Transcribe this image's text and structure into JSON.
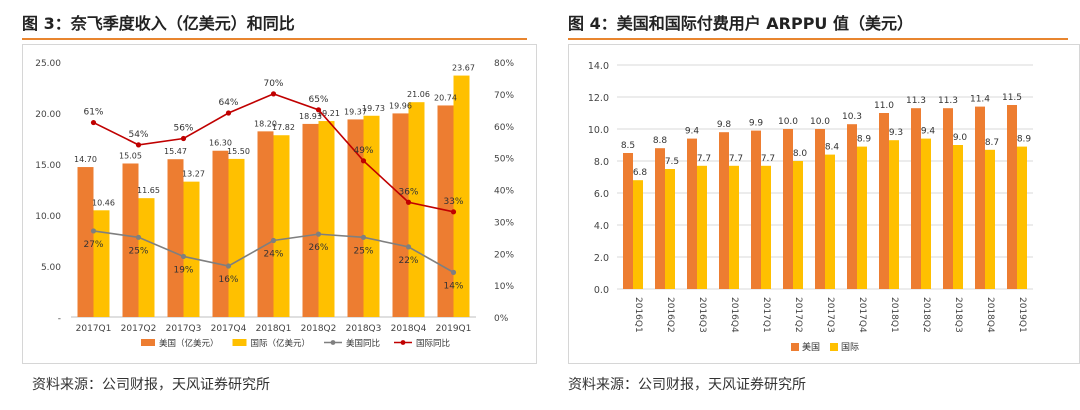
{
  "left_panel": {
    "title": "图 3：奈飞季度收入（亿美元）和同比",
    "source": "资料来源：公司财报，天风证券研究所"
  },
  "right_panel": {
    "title": "图 4：美国和国际付费用户 ARPPU 值（美元）",
    "source": "资料来源：公司财报，天风证券研究所"
  },
  "colors": {
    "us": "#ed7d31",
    "intl": "#ffc000",
    "us_yoy": "#7f7f7f",
    "intl_yoy": "#c00000",
    "accent": "#e8852f"
  },
  "chart_data": [
    {
      "type": "bar",
      "title": "奈飞季度收入（亿美元）和同比",
      "categories": [
        "2017Q1",
        "2017Q2",
        "2017Q3",
        "2017Q4",
        "2018Q1",
        "2018Q2",
        "2018Q3",
        "2018Q4",
        "2019Q1"
      ],
      "series": [
        {
          "name": "美国（亿美元）",
          "values": [
            14.7,
            15.05,
            15.47,
            16.3,
            18.2,
            18.93,
            19.37,
            19.96,
            20.74
          ]
        },
        {
          "name": "国际（亿美元）",
          "values": [
            10.46,
            11.65,
            13.27,
            15.5,
            17.82,
            19.21,
            19.73,
            21.06,
            23.67
          ]
        }
      ],
      "value_labels": {
        "us": [
          "14.70",
          "15.05",
          "15.47",
          "16.30",
          "18.20",
          "18.93",
          "19.37",
          "19.96",
          "20.74"
        ],
        "intl": [
          "10.46",
          "11.65",
          "13.27",
          "15.50",
          "17.82",
          "19.21",
          "19.73",
          "21.06",
          "23.67"
        ]
      },
      "line_series": [
        {
          "name": "美国同比",
          "values": [
            27,
            25,
            19,
            16,
            24,
            26,
            25,
            22,
            14
          ],
          "labels": [
            "27%",
            "25%",
            "19%",
            "16%",
            "24%",
            "26%",
            "25%",
            "22%",
            "14%"
          ]
        },
        {
          "name": "国际同比",
          "values": [
            61,
            54,
            56,
            64,
            70,
            65,
            49,
            36,
            33
          ],
          "labels": [
            "61%",
            "54%",
            "56%",
            "64%",
            "70%",
            "65%",
            "49%",
            "36%",
            "33%"
          ]
        }
      ],
      "ylim": [
        0,
        25
      ],
      "y2lim": [
        0,
        80
      ],
      "y_ticks": [
        "-",
        "5.00",
        "10.00",
        "15.00",
        "20.00",
        "25.00"
      ],
      "y2_ticks": [
        "0%",
        "10%",
        "20%",
        "30%",
        "40%",
        "50%",
        "60%",
        "70%",
        "80%"
      ],
      "legend": [
        "美国（亿美元）",
        "国际（亿美元）",
        "美国同比",
        "国际同比"
      ],
      "legend_position": "bottom"
    },
    {
      "type": "bar",
      "title": "美国和国际付费用户 ARPPU 值（美元）",
      "categories": [
        "2016Q1",
        "2016Q2",
        "2016Q3",
        "2016Q4",
        "2017Q1",
        "2017Q2",
        "2017Q3",
        "2017Q4",
        "2018Q1",
        "2018Q2",
        "2018Q3",
        "2018Q4",
        "2019Q1"
      ],
      "series": [
        {
          "name": "美国",
          "values": [
            8.5,
            8.8,
            9.4,
            9.8,
            9.9,
            10.0,
            10.0,
            10.3,
            11.0,
            11.3,
            11.3,
            11.4,
            11.5
          ]
        },
        {
          "name": "国际",
          "values": [
            6.8,
            7.5,
            7.7,
            7.7,
            7.7,
            8.0,
            8.4,
            8.9,
            9.3,
            9.4,
            9.0,
            8.7,
            8.9
          ]
        }
      ],
      "value_labels": {
        "us": [
          "8.5",
          "8.8",
          "9.4",
          "9.8",
          "9.9",
          "10.0",
          "10.0",
          "10.3",
          "11.0",
          "11.3",
          "11.3",
          "11.4",
          "11.5"
        ],
        "intl": [
          "6.8",
          "7.5",
          "7.7",
          "7.7",
          "7.7",
          "8.0",
          "8.4",
          "8.9",
          "9.3",
          "9.4",
          "9.0",
          "8.7",
          "8.9"
        ]
      },
      "ylim": [
        0,
        14
      ],
      "y_ticks": [
        "0.0",
        "2.0",
        "4.0",
        "6.0",
        "8.0",
        "10.0",
        "12.0",
        "14.0"
      ],
      "legend": [
        "美国",
        "国际"
      ],
      "legend_position": "bottom"
    }
  ]
}
